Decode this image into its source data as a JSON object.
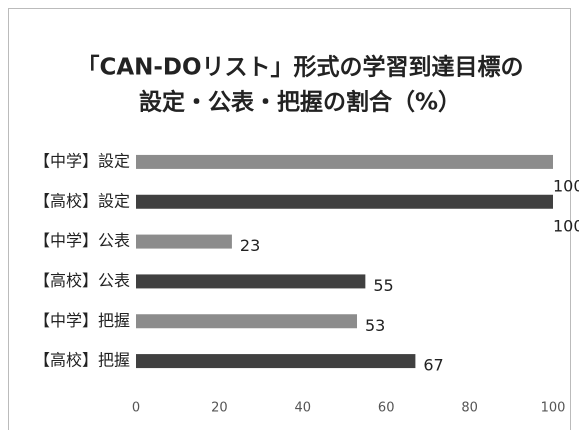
{
  "chart_data": {
    "type": "bar",
    "orientation": "horizontal",
    "title": [
      "「CAN-DOリスト」形式の学習到達目標の",
      "設定・公表・把握の割合（%）"
    ],
    "categories": [
      "【中学】設定",
      "【高校】設定",
      "【中学】公表",
      "【高校】公表",
      "【中学】把握",
      "【高校】把握"
    ],
    "values": [
      100,
      100,
      23,
      55,
      53,
      67
    ],
    "colors": [
      "#8c8c8c",
      "#404040",
      "#8c8c8c",
      "#404040",
      "#8c8c8c",
      "#404040"
    ],
    "xlim": [
      0,
      100
    ],
    "xticks": [
      0,
      20,
      40,
      60,
      80,
      100
    ],
    "grid": false
  }
}
